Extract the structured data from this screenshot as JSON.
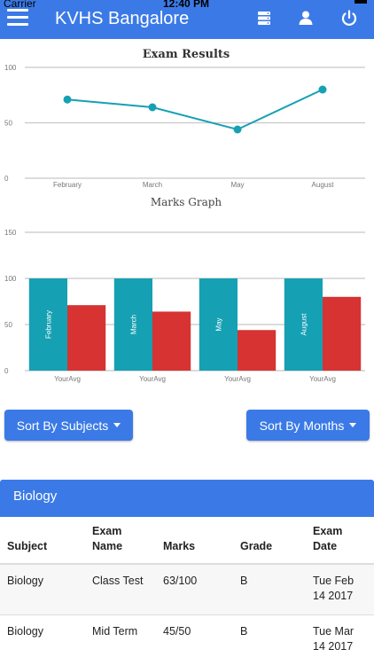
{
  "status_bar": {
    "carrier": "Carrier",
    "time": "12:40 PM"
  },
  "navbar": {
    "title": "KVHS Bangalore",
    "icons": [
      "menu-icon",
      "server-icon",
      "user-icon",
      "power-icon"
    ]
  },
  "colors": {
    "primary": "#3b7ae6",
    "teal": "#16a0b4",
    "red": "#d63332"
  },
  "chart_data": [
    {
      "type": "line",
      "title": "Exam Results",
      "categories": [
        "February",
        "March",
        "May",
        "August"
      ],
      "series": [
        {
          "values": [
            71,
            64,
            44,
            80
          ]
        }
      ],
      "ylim": [
        0,
        100
      ],
      "yticks": [
        "0",
        "50",
        "100"
      ],
      "xlabel": "Marks Graph",
      "grid": true
    },
    {
      "type": "bar",
      "categories": [
        "February",
        "March",
        "May",
        "August"
      ],
      "tick_labels": [
        "YourAvg",
        "YourAvg",
        "YourAvg",
        "YourAvg"
      ],
      "series": [
        {
          "values": [
            100,
            100,
            100,
            100
          ]
        },
        {
          "values": [
            71,
            64,
            44,
            80
          ]
        }
      ],
      "ylim": [
        0,
        150
      ],
      "yticks": [
        "0",
        "50",
        "100",
        "150"
      ],
      "grid": true
    }
  ],
  "buttons": {
    "sort_subjects": "Sort By Subjects",
    "sort_months": "Sort By Months"
  },
  "panel": {
    "title": "Biology",
    "columns": [
      "Subject",
      "Exam Name",
      "Marks",
      "Grade",
      "Exam Date"
    ],
    "rows": [
      [
        "Biology",
        "Class Test",
        "63/100",
        "B",
        "Tue Feb 14 2017"
      ],
      [
        "Biology",
        "Mid Term",
        "45/50",
        "B",
        "Tue Mar 14 2017"
      ]
    ]
  }
}
